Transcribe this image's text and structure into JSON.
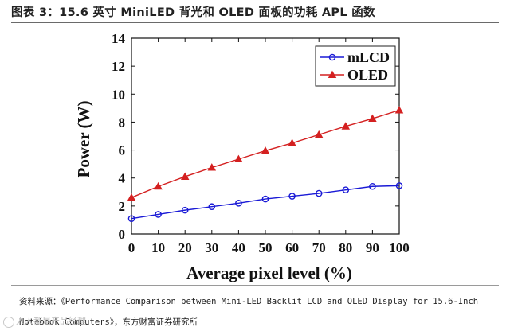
{
  "caption": "图表 3：15.6 英寸 MiniLED 背光和 OLED 面板的功耗 APL 函数",
  "source_text": "资料来源：《Performance Comparison between Mini-LED Backlit LCD and OLED Display for 15.6-Inch Notebook Computers》，东方财富证券研究所",
  "watermark": "人人都是产品经理",
  "colors": {
    "mLCD": "#1a1ad6",
    "OLED": "#d42020"
  },
  "chart_data": {
    "type": "line",
    "title": "",
    "xlabel": "Average pixel level (%)",
    "ylabel": "Power (W)",
    "x": [
      0,
      10,
      20,
      30,
      40,
      50,
      60,
      70,
      80,
      90,
      100
    ],
    "xlim": [
      0,
      100
    ],
    "ylim": [
      0,
      14
    ],
    "xticks": [
      "0",
      "10",
      "20",
      "30",
      "40",
      "50",
      "60",
      "70",
      "80",
      "90",
      "100"
    ],
    "yticks": [
      "0",
      "2",
      "4",
      "6",
      "8",
      "10",
      "12",
      "14"
    ],
    "grid": false,
    "legend_position": "top-right",
    "series": [
      {
        "name": "mLCD",
        "marker": "circle",
        "values": [
          1.1,
          1.4,
          1.7,
          1.95,
          2.2,
          2.5,
          2.7,
          2.9,
          3.15,
          3.4,
          3.45
        ]
      },
      {
        "name": "OLED",
        "marker": "triangle",
        "values": [
          2.6,
          3.4,
          4.1,
          4.75,
          5.35,
          5.95,
          6.5,
          7.1,
          7.7,
          8.25,
          8.85
        ]
      }
    ]
  }
}
